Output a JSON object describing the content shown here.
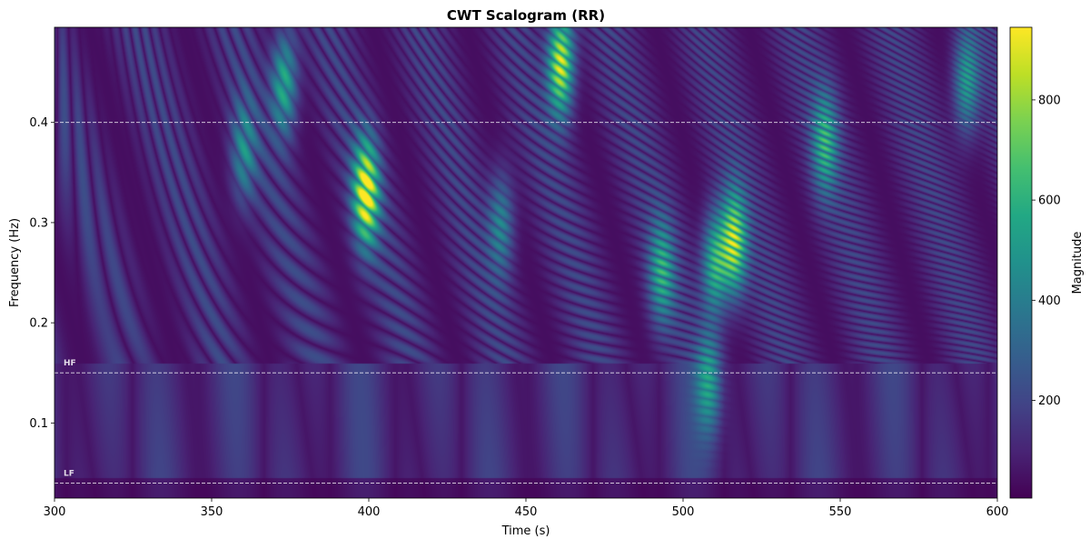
{
  "chart_data": {
    "type": "heatmap",
    "title": "CWT Scalogram (RR)",
    "xlabel": "Time (s)",
    "ylabel": "Frequency (Hz)",
    "colorbar_label": "Magnitude",
    "colormap": "viridis",
    "xlim": [
      300,
      600
    ],
    "ylim": [
      0.025,
      0.495
    ],
    "clim": [
      5,
      945
    ],
    "x_ticks": [
      300,
      350,
      400,
      450,
      500,
      550,
      600
    ],
    "y_ticks": [
      0.1,
      0.2,
      0.3,
      0.4
    ],
    "y_tick_labels": [
      "0.1",
      "0.2",
      "0.3",
      "0.4"
    ],
    "colorbar_ticks": [
      200,
      400,
      600,
      800
    ],
    "band_lines": [
      {
        "frequency": 0.04,
        "label": "LF"
      },
      {
        "frequency": 0.15,
        "label": "HF"
      },
      {
        "frequency": 0.4,
        "label": ""
      }
    ],
    "hotspots": [
      {
        "time": 399,
        "frequency": 0.33,
        "magnitude": 940
      },
      {
        "time": 461,
        "frequency": 0.46,
        "magnitude": 900
      },
      {
        "time": 516,
        "frequency": 0.28,
        "magnitude": 780
      },
      {
        "time": 510,
        "frequency": 0.26,
        "magnitude": 600
      },
      {
        "time": 373,
        "frequency": 0.44,
        "magnitude": 560
      },
      {
        "time": 545,
        "frequency": 0.38,
        "magnitude": 480
      },
      {
        "time": 590,
        "frequency": 0.44,
        "magnitude": 480
      },
      {
        "time": 508,
        "frequency": 0.14,
        "magnitude": 460
      },
      {
        "time": 493,
        "frequency": 0.25,
        "magnitude": 470
      },
      {
        "time": 442,
        "frequency": 0.3,
        "magnitude": 380
      },
      {
        "time": 360,
        "frequency": 0.37,
        "magnitude": 380
      }
    ]
  }
}
